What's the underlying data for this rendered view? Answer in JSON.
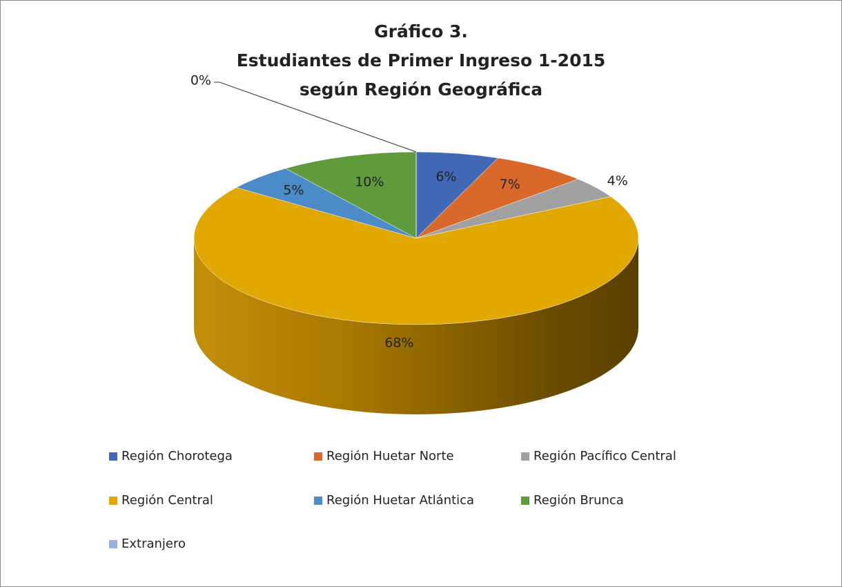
{
  "chart_data": {
    "type": "pie3d",
    "title": [
      "Gráfico 3.",
      "Estudiantes de Primer Ingreso 1-2015",
      "según Región Geográfica"
    ],
    "categories": [
      "Región Chorotega",
      "Región Huetar Norte",
      "Región Pacífico Central",
      "Región Central",
      "Región Huetar Atlántica",
      "Región Brunca",
      "Extranjero"
    ],
    "values": [
      6,
      7,
      4,
      68,
      5,
      10,
      0
    ],
    "value_labels": [
      "6%",
      "7%",
      "4%",
      "68%",
      "5%",
      "10%",
      "0%"
    ],
    "colors": [
      "#4169b5",
      "#d8692a",
      "#a0a0a0",
      "#e0a800",
      "#4b8bc7",
      "#5f9b3c",
      "#9bb0dc"
    ],
    "legend": "bottom"
  }
}
